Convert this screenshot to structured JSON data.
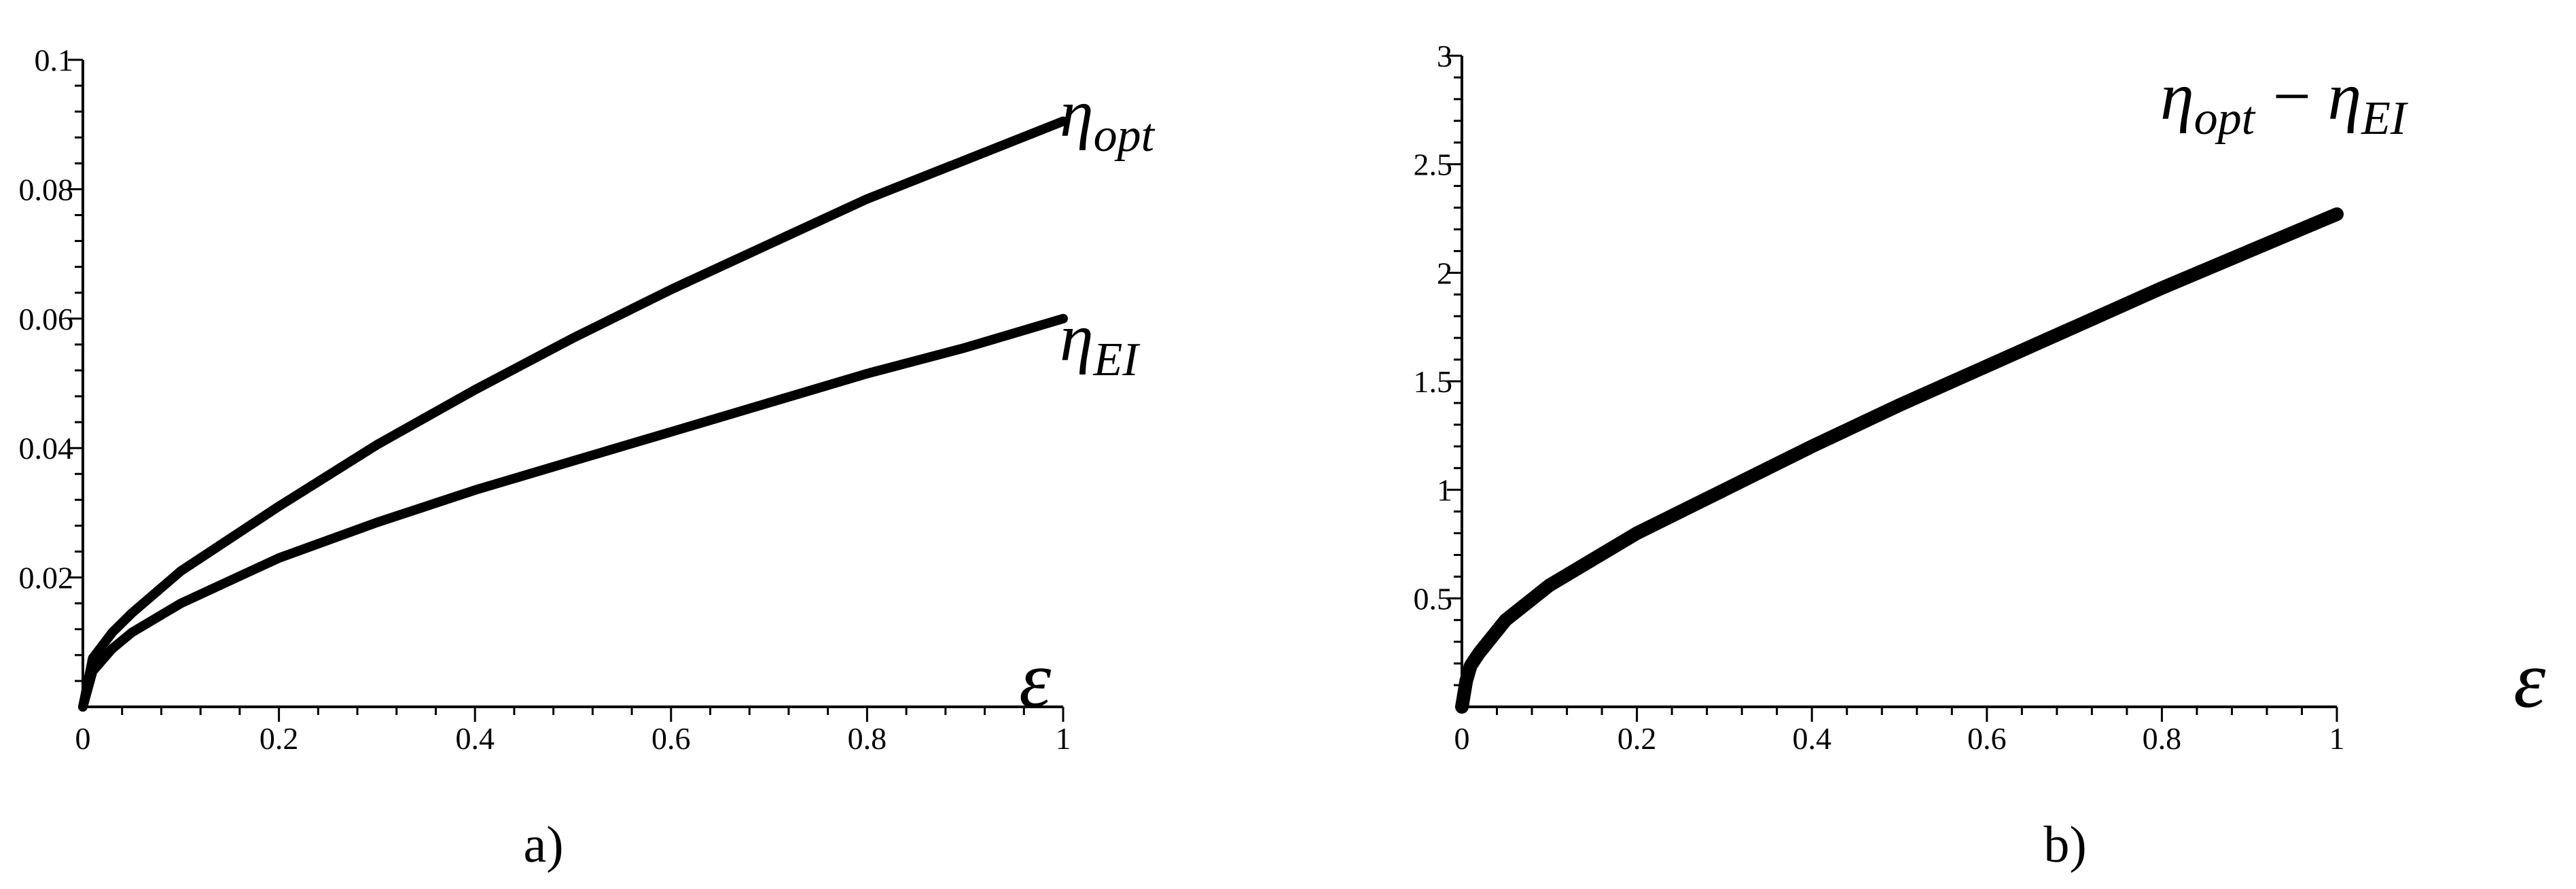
{
  "chart_data": [
    {
      "type": "line",
      "caption": "a)",
      "x_var": "ε",
      "xlim": [
        0,
        1
      ],
      "ylim": [
        0,
        0.1
      ],
      "x_ticks": [
        "0",
        "0.2",
        "0.4",
        "0.6",
        "0.8",
        "1"
      ],
      "y_ticks": [
        "0.02",
        "0.04",
        "0.06",
        "0.08",
        "0.1"
      ],
      "series": [
        {
          "label_main": "η",
          "label_sub": "opt",
          "x": [
            0,
            0.01,
            0.03,
            0.05,
            0.1,
            0.2,
            0.3,
            0.4,
            0.5,
            0.6,
            0.7,
            0.8,
            0.9,
            1.0
          ],
          "y": [
            0,
            0.0075,
            0.0115,
            0.0145,
            0.021,
            0.031,
            0.0405,
            0.049,
            0.057,
            0.0645,
            0.0715,
            0.0785,
            0.0845,
            0.0905
          ]
        },
        {
          "label_main": "η",
          "label_sub": "EI",
          "x": [
            0,
            0.01,
            0.03,
            0.05,
            0.1,
            0.2,
            0.3,
            0.4,
            0.5,
            0.6,
            0.7,
            0.8,
            0.9,
            1.0
          ],
          "y": [
            0,
            0.0055,
            0.009,
            0.0115,
            0.016,
            0.023,
            0.0285,
            0.0335,
            0.038,
            0.0425,
            0.047,
            0.0515,
            0.0555,
            0.06
          ]
        }
      ]
    },
    {
      "type": "line",
      "caption": "b)",
      "x_var": "ε",
      "xlim": [
        0,
        1
      ],
      "ylim": [
        0,
        3
      ],
      "x_ticks": [
        "0",
        "0.2",
        "0.4",
        "0.6",
        "0.8",
        "1"
      ],
      "y_ticks": [
        "0.5",
        "1",
        "1.5",
        "2",
        "2.5",
        "3"
      ],
      "series": [
        {
          "label_main": "η",
          "label_sub": "opt",
          "label_op": "−",
          "label_main2": "η",
          "label_sub2": "EI",
          "x": [
            0,
            0.005,
            0.01,
            0.02,
            0.05,
            0.1,
            0.2,
            0.3,
            0.4,
            0.5,
            0.6,
            0.7,
            0.8,
            0.9,
            1.0
          ],
          "y": [
            0,
            0.12,
            0.19,
            0.25,
            0.4,
            0.56,
            0.8,
            1.0,
            1.2,
            1.39,
            1.57,
            1.75,
            1.93,
            2.1,
            2.27
          ]
        }
      ]
    }
  ]
}
